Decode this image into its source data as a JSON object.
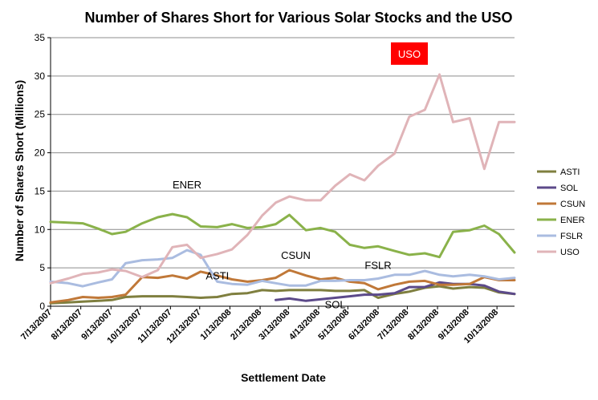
{
  "chart_data": {
    "type": "line",
    "title": "Number of Shares Short for Various Solar Stocks and the USO",
    "xlabel": "Settlement Date",
    "ylabel": "Number of Shares  Short (Millions)",
    "ylim": [
      0,
      35
    ],
    "yticks": [
      0,
      5,
      10,
      15,
      20,
      25,
      30,
      35
    ],
    "grid": "horizontal",
    "legend_position": "right",
    "x_tick_labels": [
      "7/13/2007",
      "8/13/2007",
      "9/13/2007",
      "10/13/2007",
      "11/13/2007",
      "12/13/2007",
      "1/13/2008",
      "2/13/2008",
      "3/13/2008",
      "4/13/2008",
      "5/13/2008",
      "6/13/2008",
      "7/13/2008",
      "8/13/2008",
      "9/13/2008",
      "10/13/2008"
    ],
    "x": [
      "2007-07-13",
      "2007-07-31",
      "2007-08-15",
      "2007-08-31",
      "2007-09-14",
      "2007-09-28",
      "2007-10-15",
      "2007-10-31",
      "2007-11-15",
      "2007-11-30",
      "2007-12-14",
      "2007-12-31",
      "2008-01-15",
      "2008-01-31",
      "2008-02-15",
      "2008-02-29",
      "2008-03-14",
      "2008-03-31",
      "2008-04-15",
      "2008-04-30",
      "2008-05-15",
      "2008-05-30",
      "2008-06-13",
      "2008-06-30",
      "2008-07-15",
      "2008-07-31",
      "2008-08-15",
      "2008-08-29",
      "2008-09-15",
      "2008-09-30",
      "2008-10-15",
      "2008-10-31"
    ],
    "series": [
      {
        "name": "ASTI",
        "color": "#7f7f3f",
        "values": [
          0.4,
          0.5,
          0.6,
          0.7,
          0.8,
          1.2,
          1.3,
          1.3,
          1.3,
          1.2,
          1.1,
          1.2,
          1.6,
          1.7,
          2.1,
          2.0,
          2.1,
          2.1,
          2.1,
          2.0,
          2.0,
          2.1,
          1.1,
          1.6,
          1.9,
          2.4,
          2.6,
          2.3,
          2.5,
          2.4,
          1.8,
          1.6
        ]
      },
      {
        "name": "SOL",
        "color": "#5c4a8a",
        "values": [
          null,
          null,
          null,
          null,
          null,
          null,
          null,
          null,
          null,
          null,
          null,
          null,
          null,
          null,
          null,
          0.8,
          1.0,
          0.7,
          0.9,
          1.1,
          1.3,
          1.5,
          1.5,
          1.7,
          2.5,
          2.5,
          3.1,
          2.9,
          2.9,
          2.7,
          1.9,
          1.6
        ]
      },
      {
        "name": "CSUN",
        "color": "#c07838",
        "values": [
          0.5,
          0.8,
          1.2,
          1.1,
          1.2,
          1.5,
          3.8,
          3.7,
          4.0,
          3.6,
          4.5,
          4.0,
          3.5,
          3.2,
          3.4,
          3.7,
          4.7,
          4.0,
          3.5,
          3.7,
          3.2,
          3.0,
          2.2,
          2.8,
          3.2,
          3.3,
          2.8,
          2.8,
          2.9,
          3.8,
          3.4,
          3.4
        ]
      },
      {
        "name": "ENER",
        "color": "#8ab24a",
        "values": [
          11.0,
          10.9,
          10.8,
          10.1,
          9.4,
          9.7,
          10.8,
          11.6,
          12.0,
          11.6,
          10.4,
          10.3,
          10.7,
          10.2,
          10.3,
          10.7,
          11.9,
          9.9,
          10.2,
          9.7,
          8.0,
          7.6,
          7.8,
          7.2,
          6.7,
          6.9,
          6.4,
          9.7,
          9.9,
          10.5,
          9.4,
          7.0
        ]
      },
      {
        "name": "FSLR",
        "color": "#aabce0",
        "values": [
          3.2,
          3.0,
          2.6,
          3.1,
          3.5,
          5.6,
          6.0,
          6.1,
          6.3,
          7.3,
          6.7,
          3.2,
          2.9,
          2.8,
          3.3,
          3.0,
          2.7,
          2.7,
          3.3,
          3.3,
          3.4,
          3.4,
          3.6,
          4.1,
          4.1,
          4.6,
          4.1,
          3.9,
          4.1,
          3.9,
          3.5,
          3.7
        ]
      },
      {
        "name": "USO",
        "color": "#e0b4b8",
        "values": [
          3.0,
          3.6,
          4.2,
          4.4,
          4.8,
          4.6,
          3.8,
          4.7,
          7.7,
          8.0,
          6.3,
          6.8,
          7.4,
          9.3,
          11.8,
          13.5,
          14.3,
          13.8,
          13.8,
          15.7,
          17.2,
          16.4,
          18.3,
          19.9,
          24.7,
          25.6,
          30.2,
          24.0,
          24.5,
          17.9,
          24.0,
          24.0
        ]
      }
    ],
    "annotations": [
      {
        "text": "ENER",
        "series": "ENER"
      },
      {
        "text": "CSUN",
        "series": "CSUN"
      },
      {
        "text": "FSLR",
        "series": "FSLR"
      },
      {
        "text": "ASTI",
        "series": "ASTI"
      },
      {
        "text": "SOL",
        "series": "SOL"
      },
      {
        "text": "USO",
        "series": "USO",
        "background": "#ff0000"
      }
    ]
  }
}
